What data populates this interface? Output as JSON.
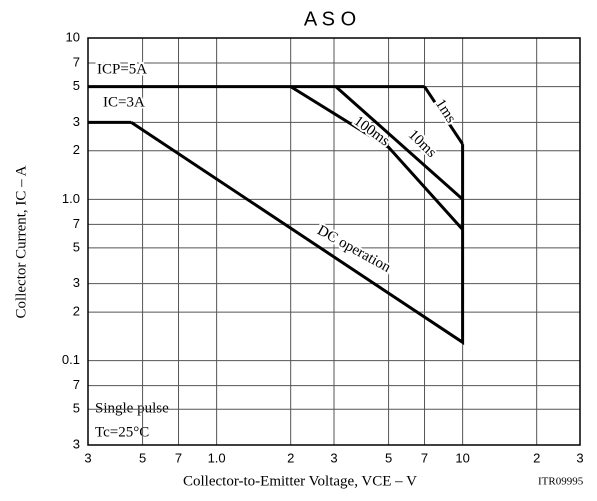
{
  "chart_data": {
    "type": "line",
    "title": "A S O",
    "x_label": "Collector-to-Emitter Voltage, VCE – V",
    "y_label": "Collector Current, IC – A",
    "log_x": true,
    "log_y": true,
    "grid": true,
    "xlim": [
      0.3,
      30
    ],
    "ylim": [
      0.03,
      10
    ],
    "xticks": [
      {
        "value": 0.3,
        "label": "3"
      },
      {
        "value": 0.5,
        "label": "5"
      },
      {
        "value": 0.7,
        "label": "7"
      },
      {
        "value": 1,
        "label": "1.0"
      },
      2,
      3,
      5,
      7,
      10,
      {
        "value": 20,
        "label": "2"
      },
      {
        "value": 30,
        "label": "3"
      }
    ],
    "yticks": [
      {
        "value": 0.03,
        "label": "3"
      },
      {
        "value": 0.05,
        "label": "5"
      },
      {
        "value": 0.07,
        "label": "7"
      },
      0.1,
      {
        "value": 0.2,
        "label": "2"
      },
      {
        "value": 0.3,
        "label": "3"
      },
      {
        "value": 0.5,
        "label": "5"
      },
      {
        "value": 0.7,
        "label": "7"
      },
      {
        "value": 1,
        "label": "1.0"
      },
      2,
      3,
      5,
      7,
      10
    ],
    "series": [
      {
        "name": "ICP=5A",
        "color": "#000000",
        "x": [
          0.3,
          7
        ],
        "values": [
          5,
          5
        ]
      },
      {
        "name": "IC=3A",
        "color": "#000000",
        "x": [
          0.3,
          0.45
        ],
        "values": [
          3,
          3
        ]
      },
      {
        "name": "DC operation",
        "color": "#000000",
        "x": [
          0.45,
          10,
          10
        ],
        "values": [
          3,
          0.13,
          2.2
        ]
      },
      {
        "name": "100ms",
        "color": "#000000",
        "x": [
          2,
          5,
          10
        ],
        "values": [
          5,
          2.1,
          0.65
        ]
      },
      {
        "name": "10ms",
        "color": "#000000",
        "x": [
          3.05,
          10
        ],
        "values": [
          5,
          1.0
        ]
      },
      {
        "name": "1ms",
        "color": "#000000",
        "x": [
          7,
          10
        ],
        "values": [
          5,
          2.2
        ]
      }
    ],
    "annotations": [
      "Single pulse",
      "Tc=25°C"
    ],
    "code": "ITR09995"
  }
}
